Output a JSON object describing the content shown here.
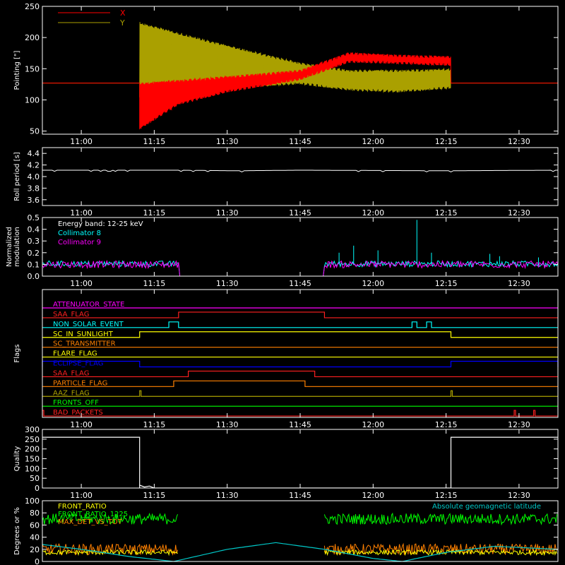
{
  "colors": {
    "background": "#000000",
    "axes": "#ffffff",
    "x_series": "#ff0000",
    "y_series": "#aaa000",
    "roll": "#ffffff",
    "coll8": "#00ffff",
    "coll9": "#ff00ff",
    "quality": "#ffffff",
    "front_ratio": "#ffff00",
    "front_ratio_1225": "#00ff00",
    "max_det": "#ff8000",
    "geomag": "#00c8c8"
  },
  "chart_data": [
    {
      "id": "pointing",
      "type": "line",
      "ylabel": "Pointing [\"]",
      "ylim": [
        45,
        250
      ],
      "xlim": [
        "10:52",
        "12:38"
      ],
      "x_ticks": [
        "11:00",
        "11:15",
        "11:30",
        "11:45",
        "12:00",
        "12:15",
        "12:30"
      ],
      "y_ticks": [
        "50",
        "100",
        "150",
        "200",
        "250"
      ],
      "legend": [
        "X",
        "Y"
      ],
      "legend_placement": "top-left",
      "series": [
        {
          "name": "X",
          "x": [
            "11:12",
            "11:20",
            "11:30",
            "11:45",
            "11:55",
            "12:05",
            "12:16"
          ],
          "upper": [
            128,
            132,
            138,
            148,
            176,
            172,
            170
          ],
          "lower": [
            52,
            92,
            112,
            132,
            160,
            158,
            155
          ],
          "baseline": 127
        },
        {
          "name": "Y",
          "x": [
            "11:12",
            "11:20",
            "11:30",
            "11:45",
            "11:55",
            "12:05",
            "12:16"
          ],
          "upper": [
            225,
            208,
            188,
            160,
            148,
            148,
            150
          ],
          "lower": [
            100,
            112,
            118,
            125,
            115,
            112,
            118
          ],
          "baseline": 127
        }
      ]
    },
    {
      "id": "roll",
      "type": "line",
      "ylabel": "Roll period [s]",
      "ylim": [
        3.5,
        4.5
      ],
      "xlim": [
        "10:52",
        "12:38"
      ],
      "x_ticks": [
        "11:00",
        "11:15",
        "11:30",
        "11:45",
        "12:00",
        "12:15",
        "12:30"
      ],
      "y_ticks": [
        "3.6",
        "3.8",
        "4.0",
        "4.2",
        "4.4"
      ],
      "series": [
        {
          "name": "Roll period",
          "x": [
            "10:52",
            "11:20",
            "11:32",
            "11:45",
            "12:15",
            "12:38"
          ],
          "values": [
            4.11,
            4.11,
            4.1,
            4.11,
            4.1,
            4.11
          ]
        }
      ]
    },
    {
      "id": "modulation",
      "type": "line",
      "ylabel": "Normalized modulation",
      "ylabel_lines": [
        "Normalized",
        "modulation"
      ],
      "ylim": [
        0,
        0.5
      ],
      "xlim": [
        "10:52",
        "12:38"
      ],
      "x_ticks": [
        "11:00",
        "11:15",
        "11:30",
        "11:45",
        "12:00",
        "12:15",
        "12:30"
      ],
      "y_ticks": [
        "0.0",
        "0.1",
        "0.2",
        "0.3",
        "0.4",
        "0.5"
      ],
      "annotation": "Energy band: 12-25 keV",
      "legend": [
        "Collimator 8",
        "Collimator 9"
      ],
      "legend_placement": "top-left",
      "active_intervals": [
        [
          "10:52",
          "11:20"
        ],
        [
          "11:50",
          "12:38"
        ]
      ],
      "spikes_coll8": [
        [
          "11:53",
          0.2
        ],
        [
          "11:56",
          0.26
        ],
        [
          "12:01",
          0.22
        ],
        [
          "12:09",
          0.48
        ],
        [
          "12:12",
          0.2
        ],
        [
          "12:24",
          0.19
        ],
        [
          "12:26",
          0.17
        ],
        [
          "12:34",
          0.16
        ]
      ]
    },
    {
      "id": "flags",
      "type": "table",
      "ylabel": "Flags",
      "xlim": [
        "10:52",
        "12:38"
      ],
      "x_ticks": [
        "11:00",
        "11:15",
        "11:30",
        "11:45",
        "12:00",
        "12:15",
        "12:30"
      ],
      "rows": [
        {
          "name": "ATTENUATOR_STATE",
          "color": "#ff00ff",
          "on": []
        },
        {
          "name": "SAA_FLAG",
          "color": "#ff2020",
          "on": [
            [
              "11:20",
              "11:50"
            ]
          ]
        },
        {
          "name": "NON_SOLAR_EVENT",
          "color": "#00ffff",
          "on": [
            [
              "11:18",
              "11:20"
            ],
            [
              "12:08",
              "12:09"
            ],
            [
              "12:11",
              "12:12"
            ]
          ]
        },
        {
          "name": "SC_IN_SUNLIGHT",
          "color": "#ffff00",
          "on": [
            [
              "11:12",
              "12:16"
            ]
          ]
        },
        {
          "name": "SC_TRANSMITTER",
          "color": "#ff8000",
          "on": []
        },
        {
          "name": "FLARE_FLAG",
          "color": "#ffff00",
          "on": []
        },
        {
          "name": "ECLIPSE_FLAG",
          "color": "#0000ff",
          "on": [
            [
              "10:52",
              "11:12"
            ],
            [
              "12:16",
              "12:38"
            ]
          ]
        },
        {
          "name": "SAA_FLAG",
          "color": "#ff2020",
          "on": [
            [
              "11:22",
              "11:48"
            ]
          ]
        },
        {
          "name": "PARTICLE_FLAG",
          "color": "#ff8000",
          "on": [
            [
              "11:19",
              "11:46"
            ]
          ]
        },
        {
          "name": "AAZ_FLAG",
          "color": "#aaa000",
          "on": [
            [
              "11:12",
              "11:12"
            ],
            [
              "12:16",
              "12:16"
            ]
          ]
        },
        {
          "name": "FRONTS_OFF",
          "color": "#00ff00",
          "on": []
        },
        {
          "name": "BAD_PACKETS",
          "color": "#ff2020",
          "on": [
            [
              "10:52",
              "10:52"
            ],
            [
              "12:29",
              "12:29"
            ],
            [
              "12:33",
              "12:33"
            ]
          ]
        }
      ]
    },
    {
      "id": "quality",
      "type": "line",
      "ylabel": "Quality",
      "ylim": [
        0,
        300
      ],
      "xlim": [
        "10:52",
        "12:38"
      ],
      "x_ticks": [
        "11:00",
        "11:15",
        "11:30",
        "11:45",
        "12:00",
        "12:15",
        "12:30"
      ],
      "y_ticks": [
        "0",
        "50",
        "100",
        "150",
        "200",
        "250",
        "300"
      ],
      "series": [
        {
          "name": "Quality",
          "x": [
            "10:52",
            "11:12",
            "11:12",
            "11:12",
            "11:13",
            "11:14",
            "11:15",
            "11:15",
            "12:16",
            "12:16",
            "12:38"
          ],
          "values": [
            260,
            260,
            0,
            15,
            5,
            10,
            0,
            0,
            0,
            260,
            260
          ]
        }
      ]
    },
    {
      "id": "detectors",
      "type": "line",
      "ylabel": "Degrees or %",
      "ylim": [
        0,
        100
      ],
      "xlim": [
        "10:52",
        "12:38"
      ],
      "x_ticks": [],
      "y_ticks": [
        "0",
        "20",
        "40",
        "60",
        "80",
        "100"
      ],
      "legend": [
        "FRONT_RATIO",
        "FRONT_RATIO_1225",
        "MAX_DET_VS_TOT"
      ],
      "legend_placement": "top-left",
      "annotation": "Absolute geomagnetic latitude",
      "active_intervals": [
        [
          "10:52",
          "11:20"
        ],
        [
          "11:50",
          "12:38"
        ]
      ],
      "levels": {
        "FRONT_RATIO": 15,
        "FRONT_RATIO_1225": 70,
        "MAX_DET_VS_TOT": 20
      },
      "geomag": {
        "x": [
          "10:52",
          "11:00",
          "11:10",
          "11:19",
          "11:30",
          "11:40",
          "11:50",
          "12:00",
          "12:06",
          "12:15",
          "12:25",
          "12:38"
        ],
        "values": [
          28,
          20,
          8,
          0,
          20,
          31,
          20,
          5,
          0,
          15,
          25,
          20
        ]
      }
    }
  ]
}
